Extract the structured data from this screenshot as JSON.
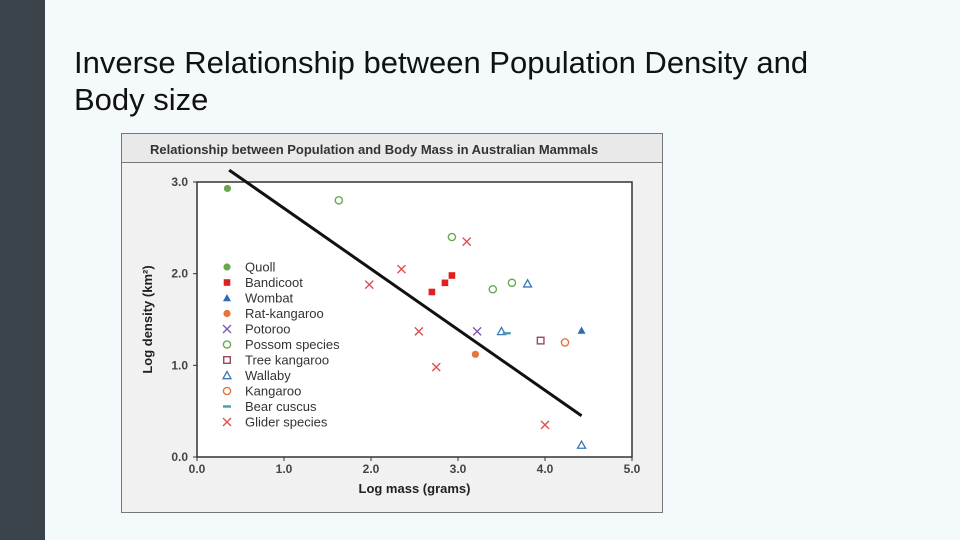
{
  "slide": {
    "title": "Inverse Relationship between Population Density and\nBody size"
  },
  "chart_data": {
    "type": "scatter",
    "title": "Relationship between Population and Body Mass in Australian Mammals",
    "xlabel": "Log mass (grams)",
    "ylabel": "Log density (km²)",
    "xlim": [
      0.0,
      5.0
    ],
    "ylim": [
      0.0,
      3.0
    ],
    "xticks": [
      "0.0",
      "1.0",
      "2.0",
      "3.0",
      "4.0",
      "5.0"
    ],
    "yticks": [
      "0.0",
      "1.0",
      "2.0",
      "3.0"
    ],
    "legend_position": "left",
    "series": [
      {
        "name": "Quoll",
        "marker": "dot",
        "color": "#6aa84f",
        "points": [
          [
            0.35,
            2.93
          ]
        ]
      },
      {
        "name": "Bandicoot",
        "marker": "square",
        "color": "#e02020",
        "points": [
          [
            2.7,
            1.8
          ],
          [
            2.85,
            1.9
          ],
          [
            2.93,
            1.98
          ]
        ]
      },
      {
        "name": "Wombat",
        "marker": "triangle",
        "color": "#2e6ab8",
        "points": [
          [
            4.42,
            1.38
          ]
        ]
      },
      {
        "name": "Rat-kangaroo",
        "marker": "dot",
        "color": "#e8733a",
        "points": [
          [
            3.2,
            1.12
          ]
        ]
      },
      {
        "name": "Potoroo",
        "marker": "x",
        "color": "#7a5ab8",
        "points": [
          [
            3.22,
            1.37
          ]
        ]
      },
      {
        "name": "Possom species",
        "marker": "circle",
        "color": "#6aa84f",
        "points": [
          [
            1.63,
            2.8
          ],
          [
            2.93,
            2.4
          ],
          [
            3.4,
            1.83
          ],
          [
            3.62,
            1.9
          ]
        ]
      },
      {
        "name": "Tree kangaroo",
        "marker": "open-square",
        "color": "#9a4a5a",
        "points": [
          [
            3.95,
            1.27
          ]
        ]
      },
      {
        "name": "Wallaby",
        "marker": "open-triangle",
        "color": "#3a78b8",
        "points": [
          [
            3.8,
            1.89
          ],
          [
            3.5,
            1.37
          ],
          [
            4.42,
            0.13
          ]
        ]
      },
      {
        "name": "Kangaroo",
        "marker": "circle",
        "color": "#e8733a",
        "points": [
          [
            4.23,
            1.25
          ]
        ]
      },
      {
        "name": "Bear cuscus",
        "marker": "dash",
        "color": "#4a9ab8",
        "points": [
          [
            3.56,
            1.35
          ]
        ]
      },
      {
        "name": "Glider species",
        "marker": "x",
        "color": "#e05050",
        "points": [
          [
            1.98,
            1.88
          ],
          [
            2.35,
            2.05
          ],
          [
            2.55,
            1.37
          ],
          [
            2.75,
            0.98
          ],
          [
            3.1,
            2.35
          ],
          [
            4.0,
            0.35
          ]
        ]
      }
    ],
    "trendline": {
      "x": [
        0.37,
        4.42
      ],
      "y": [
        3.13,
        0.45
      ],
      "color": "#111111"
    }
  }
}
